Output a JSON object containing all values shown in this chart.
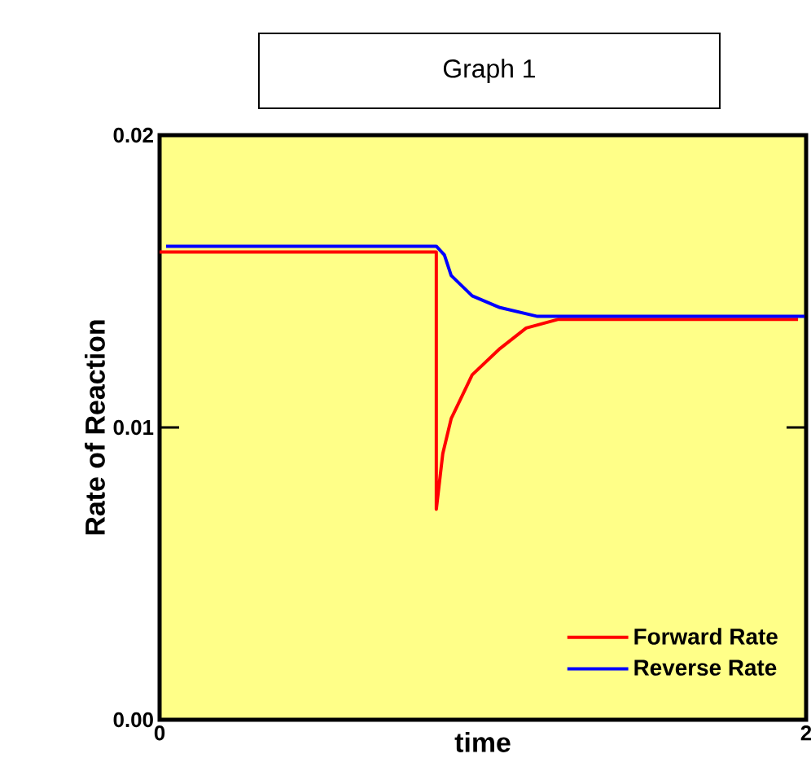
{
  "chart_data": {
    "type": "line",
    "title": "Graph 1",
    "xlabel": "time",
    "ylabel": "Rate of Reaction",
    "xlim": [
      0,
      2
    ],
    "xticks": [
      0,
      2
    ],
    "ylim": [
      0,
      0.02
    ],
    "yticks": [
      {
        "value": 0,
        "label": "0.00"
      },
      {
        "value": 0.01,
        "label": "0.01"
      },
      {
        "value": 0.02,
        "label": "0.02"
      }
    ],
    "legend": "bottom right",
    "grid": false,
    "series": [
      {
        "name": "Forward Rate",
        "color": "#ff0000",
        "x": [
          0,
          0.856,
          0.856,
          0.876,
          0.902,
          0.967,
          1.053,
          1.134,
          1.234,
          1.975
        ],
        "values": [
          0.016,
          0.016,
          0.0072,
          0.0091,
          0.0103,
          0.0118,
          0.0127,
          0.0134,
          0.0137,
          0.0137
        ]
      },
      {
        "name": "Reverse Rate",
        "color": "#0000ff",
        "x": [
          0.02,
          0.856,
          0.881,
          0.902,
          0.967,
          1.053,
          1.169,
          1.995
        ],
        "values": [
          0.0162,
          0.0162,
          0.0159,
          0.0152,
          0.0145,
          0.0141,
          0.0138,
          0.0138
        ]
      }
    ]
  }
}
